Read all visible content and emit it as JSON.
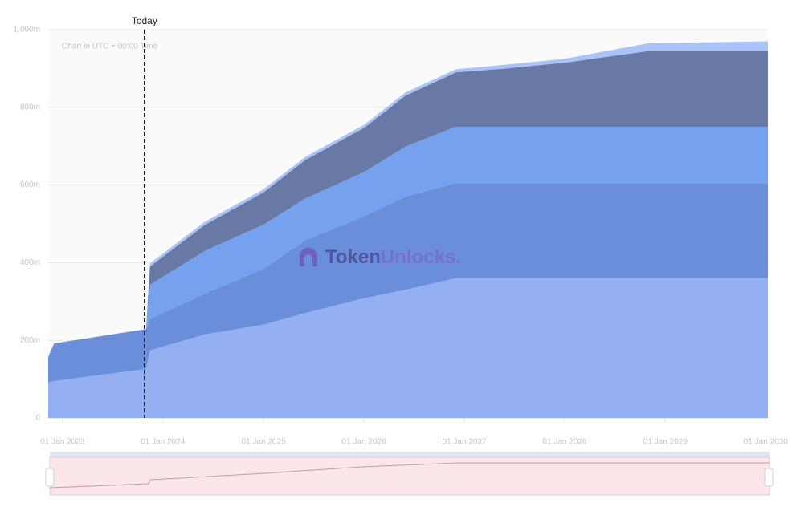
{
  "chart_data": {
    "type": "stacked_area",
    "annotation": "Chart in UTC + 00:00 Time",
    "today": "2023-10-26",
    "today_label": "Today",
    "watermark": {
      "part1": "Token",
      "part2": "Unlocks."
    },
    "x": [
      "2022-11-10",
      "2022-12-01",
      "2023-11-01",
      "2023-11-15",
      "2024-06-01",
      "2025-01-01",
      "2025-06-01",
      "2026-01-01",
      "2026-06-01",
      "2026-12-01",
      "2027-06-01",
      "2028-01-01",
      "2028-11-01",
      "2030-01-09"
    ],
    "series": [
      {
        "color": "#8fabf2",
        "values": [
          91,
          95,
          126,
          174,
          215,
          240,
          270,
          308,
          330,
          360,
          360,
          360,
          360,
          360
        ]
      },
      {
        "color": "#6388d8",
        "values": [
          66,
          97,
          103,
          81,
          105,
          144,
          187,
          211,
          240,
          245,
          245,
          245,
          245,
          245
        ]
      },
      {
        "color": "#6f9cee",
        "values": [
          0,
          0,
          0,
          88,
          110,
          114,
          108,
          114,
          129,
          145,
          145,
          145,
          145,
          145
        ]
      },
      {
        "color": "#5f729f",
        "values": [
          0,
          0,
          0,
          47,
          67,
          83,
          99,
          114,
          131,
          140,
          150,
          165,
          195,
          195
        ]
      },
      {
        "color": "#a5c0f5",
        "values": [
          0,
          0,
          0,
          8,
          8,
          8,
          8,
          8,
          8,
          8,
          10,
          10,
          20,
          25
        ]
      }
    ],
    "xlim": [
      "2022-11-10",
      "2030-01-09"
    ],
    "xticks": [
      {
        "value": "2023-01-01",
        "label": "01 Jan 2023"
      },
      {
        "value": "2024-01-01",
        "label": "01 Jan 2024"
      },
      {
        "value": "2025-01-01",
        "label": "01 Jan 2025"
      },
      {
        "value": "2026-01-01",
        "label": "01 Jan 2026"
      },
      {
        "value": "2027-01-01",
        "label": "01 Jan 2027"
      },
      {
        "value": "2028-01-01",
        "label": "01 Jan 2028"
      },
      {
        "value": "2029-01-01",
        "label": "01 Jan 2029"
      },
      {
        "value": "2030-01-01",
        "label": "01 Jan 2030"
      }
    ],
    "ylim": [
      0,
      1000
    ],
    "yticks": [
      0,
      {
        "value": 200,
        "label": "200m"
      },
      {
        "value": 400,
        "label": "400m"
      },
      {
        "value": 600,
        "label": "600m"
      },
      {
        "value": 800,
        "label": "800m"
      },
      {
        "value": 1000,
        "label": "1,000m"
      }
    ],
    "grid": true
  }
}
